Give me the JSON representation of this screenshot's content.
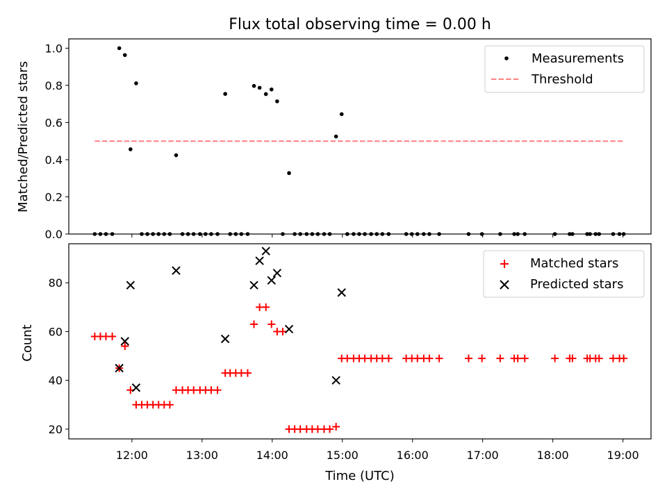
{
  "figure": {
    "title": "Flux total observing time = 0.00 h",
    "xlabel": "Time (UTC)"
  },
  "chart_data": [
    {
      "type": "scatter",
      "ylabel": "Matched/Predicted stars",
      "xlim": [
        11.1,
        19.4
      ],
      "ylim": [
        0,
        1.05
      ],
      "yticks": [
        0.0,
        0.2,
        0.4,
        0.6,
        0.8,
        1.0
      ],
      "ytick_labels": [
        "0.0",
        "0.2",
        "0.4",
        "0.6",
        "0.8",
        "1.0"
      ],
      "xticks": [
        12,
        13,
        14,
        15,
        16,
        17,
        18,
        19
      ],
      "legend": {
        "position": "top-right",
        "entries": [
          "Measurements",
          "Threshold"
        ]
      },
      "series": [
        {
          "name": "Measurements",
          "marker": "dot",
          "color": "#000000",
          "x": [
            11.47,
            11.55,
            11.63,
            11.72,
            11.82,
            11.9,
            11.98,
            12.06,
            12.14,
            12.22,
            12.3,
            12.38,
            12.46,
            12.54,
            12.63,
            12.72,
            12.8,
            12.88,
            12.97,
            13.05,
            13.13,
            13.22,
            13.33,
            13.4,
            13.48,
            13.56,
            13.65,
            13.74,
            13.82,
            13.91,
            13.99,
            14.07,
            14.15,
            14.24,
            14.32,
            14.4,
            14.49,
            14.57,
            14.65,
            14.74,
            14.82,
            14.91,
            14.99,
            15.07,
            15.16,
            15.24,
            15.32,
            15.41,
            15.49,
            15.57,
            15.66,
            15.91,
            15.99,
            16.07,
            16.16,
            16.24,
            16.38,
            16.8,
            16.99,
            17.25,
            17.45,
            17.5,
            17.6,
            18.03,
            18.24,
            18.28,
            18.49,
            18.53,
            18.61,
            18.66,
            18.86,
            18.95,
            19.01
          ],
          "y": [
            0,
            0,
            0,
            0,
            1.0,
            0.963,
            0.456,
            0.811,
            0,
            0,
            0,
            0,
            0,
            0,
            0.424,
            0,
            0,
            0,
            0,
            0,
            0,
            0,
            0.754,
            0,
            0,
            0,
            0,
            0.797,
            0.787,
            0.753,
            0.778,
            0.714,
            0,
            0.328,
            0,
            0,
            0,
            0,
            0,
            0,
            0,
            0.525,
            0.645,
            0,
            0,
            0,
            0,
            0,
            0,
            0,
            0,
            0,
            0,
            0,
            0,
            0,
            0,
            0,
            0,
            0,
            0,
            0,
            0,
            0,
            0,
            0,
            0,
            0,
            0,
            0,
            0,
            0,
            0
          ]
        },
        {
          "name": "Threshold",
          "style": "dashed",
          "color": "#ff7f7f",
          "x": [
            11.47,
            19.01
          ],
          "y": [
            0.5,
            0.5
          ]
        }
      ]
    },
    {
      "type": "scatter",
      "ylabel": "Count",
      "xlim": [
        11.1,
        19.4
      ],
      "ylim": [
        16,
        96
      ],
      "yticks": [
        20,
        40,
        60,
        80
      ],
      "ytick_labels": [
        "20",
        "40",
        "60",
        "80"
      ],
      "xticks": [
        12,
        13,
        14,
        15,
        16,
        17,
        18,
        19
      ],
      "xtick_labels": [
        "12:00",
        "13:00",
        "14:00",
        "15:00",
        "16:00",
        "17:00",
        "18:00",
        "19:00"
      ],
      "legend": {
        "position": "top-right",
        "entries": [
          "Matched stars",
          "Predicted stars"
        ]
      },
      "series": [
        {
          "name": "Matched stars",
          "marker": "plus",
          "color": "#ff0000",
          "x": [
            11.47,
            11.55,
            11.63,
            11.72,
            11.82,
            11.9,
            11.98,
            12.06,
            12.14,
            12.22,
            12.3,
            12.38,
            12.46,
            12.54,
            12.63,
            12.72,
            12.8,
            12.88,
            12.97,
            13.05,
            13.13,
            13.22,
            13.33,
            13.4,
            13.48,
            13.56,
            13.65,
            13.74,
            13.82,
            13.91,
            13.99,
            14.07,
            14.15,
            14.24,
            14.32,
            14.4,
            14.49,
            14.57,
            14.65,
            14.74,
            14.82,
            14.91,
            14.99,
            15.07,
            15.16,
            15.24,
            15.32,
            15.41,
            15.49,
            15.57,
            15.66,
            15.91,
            15.99,
            16.07,
            16.16,
            16.24,
            16.38,
            16.8,
            16.99,
            17.25,
            17.45,
            17.5,
            17.6,
            18.03,
            18.24,
            18.28,
            18.49,
            18.53,
            18.61,
            18.66,
            18.86,
            18.95,
            19.01
          ],
          "y": [
            58,
            58,
            58,
            58,
            45,
            54,
            36,
            30,
            30,
            30,
            30,
            30,
            30,
            30,
            36,
            36,
            36,
            36,
            36,
            36,
            36,
            36,
            43,
            43,
            43,
            43,
            43,
            63,
            70,
            70,
            63,
            60,
            60,
            20,
            20,
            20,
            20,
            20,
            20,
            20,
            20,
            21,
            49,
            49,
            49,
            49,
            49,
            49,
            49,
            49,
            49,
            49,
            49,
            49,
            49,
            49,
            49,
            49,
            49,
            49,
            49,
            49,
            49,
            49,
            49,
            49,
            49,
            49,
            49,
            49,
            49,
            49,
            49
          ]
        },
        {
          "name": "Predicted stars",
          "marker": "x",
          "color": "#000000",
          "x": [
            11.82,
            11.9,
            11.98,
            12.06,
            12.63,
            13.33,
            13.74,
            13.82,
            13.91,
            13.99,
            14.07,
            14.24,
            14.91,
            14.99
          ],
          "y": [
            45,
            56,
            79,
            37,
            85,
            57,
            79,
            89,
            93,
            81,
            84,
            61,
            40,
            76
          ]
        }
      ]
    }
  ]
}
